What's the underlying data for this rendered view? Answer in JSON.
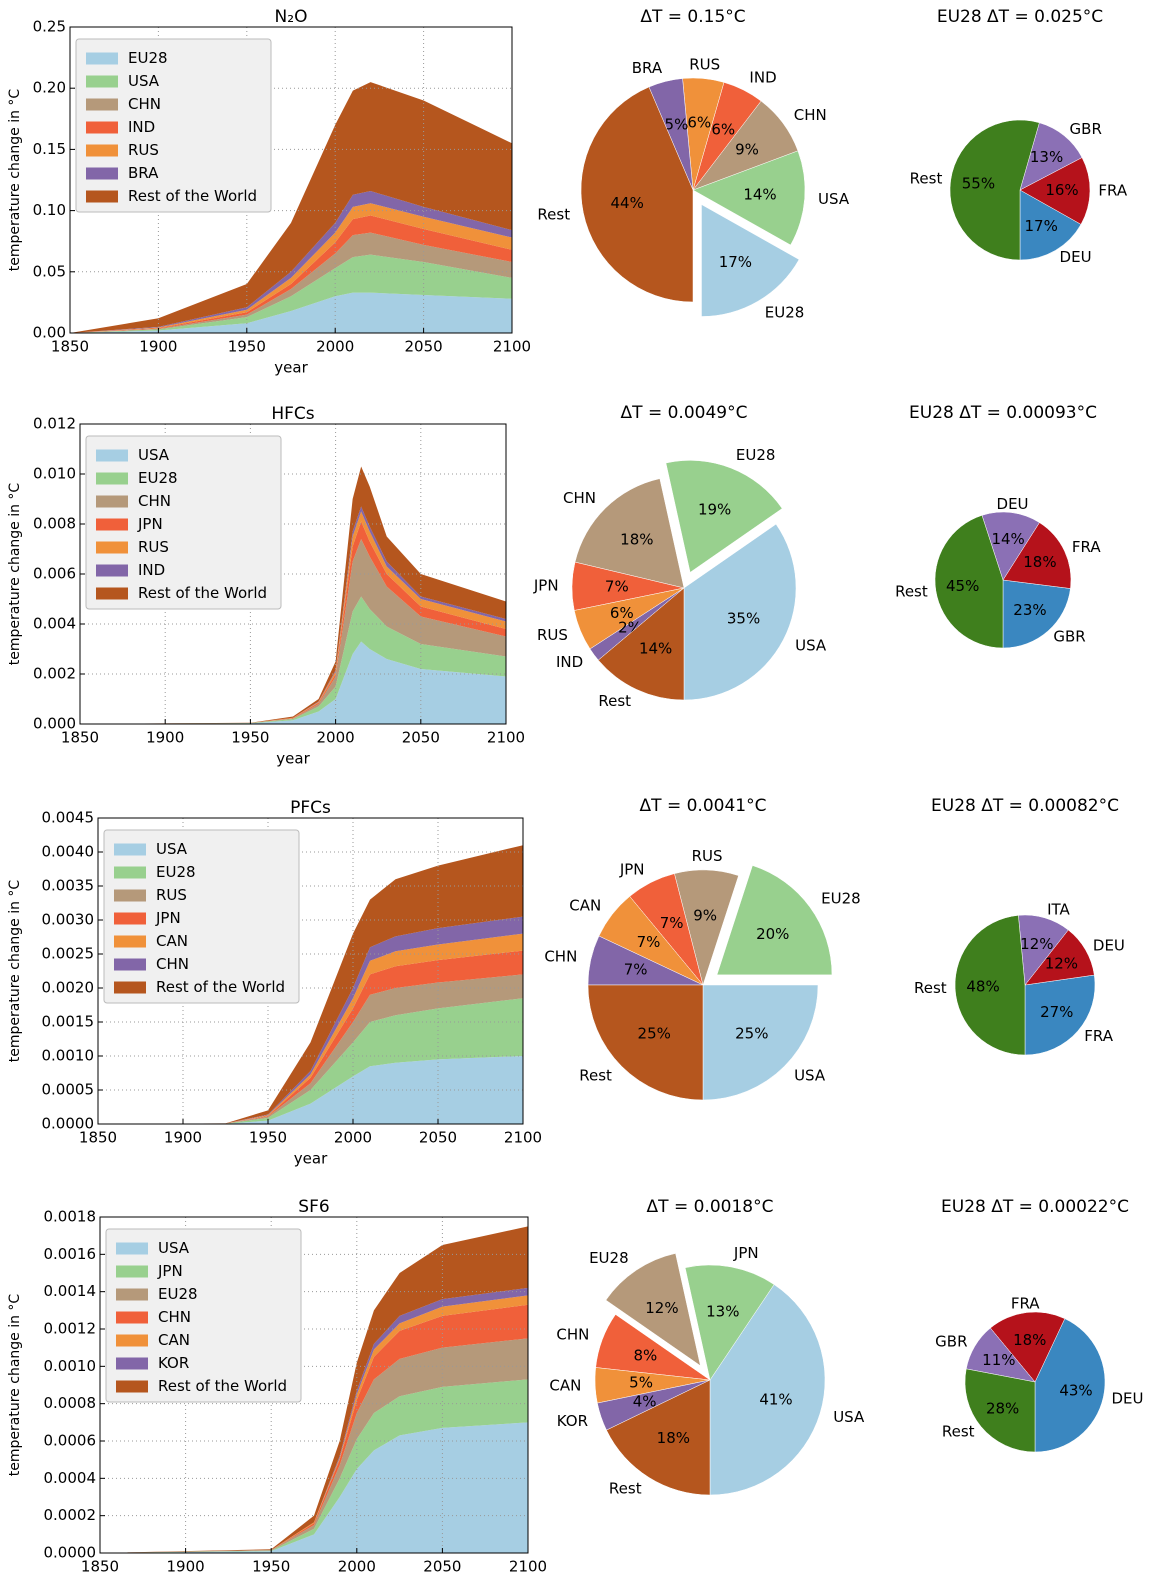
{
  "chart_data": [
    {
      "type": "area",
      "title": "N₂O",
      "xlabel": "year",
      "ylabel": "temperature change in °C",
      "x": [
        1850,
        1900,
        1950,
        1975,
        2000,
        2010,
        2020,
        2050,
        2100
      ],
      "series": [
        {
          "name": "EU28",
          "color": "#a6cee3",
          "values": [
            0,
            0.002,
            0.008,
            0.018,
            0.03,
            0.033,
            0.033,
            0.031,
            0.028
          ]
        },
        {
          "name": "USA",
          "color": "#98d08e",
          "values": [
            0,
            0.001,
            0.005,
            0.012,
            0.023,
            0.029,
            0.031,
            0.027,
            0.017
          ]
        },
        {
          "name": "CHN",
          "color": "#b5997a",
          "values": [
            0,
            0.0005,
            0.002,
            0.006,
            0.012,
            0.018,
            0.018,
            0.014,
            0.013
          ]
        },
        {
          "name": "IND",
          "color": "#f0603a",
          "values": [
            0,
            0.0005,
            0.002,
            0.004,
            0.009,
            0.013,
            0.014,
            0.013,
            0.01
          ]
        },
        {
          "name": "RUS",
          "color": "#f0913a",
          "values": [
            0,
            0.0005,
            0.002,
            0.005,
            0.008,
            0.01,
            0.01,
            0.01,
            0.01
          ]
        },
        {
          "name": "BRA",
          "color": "#8266a8",
          "values": [
            0,
            0.0005,
            0.002,
            0.005,
            0.008,
            0.01,
            0.01,
            0.008,
            0.006
          ]
        },
        {
          "name": "Rest of the World",
          "color": "#b5561e",
          "values": [
            0,
            0.007,
            0.019,
            0.04,
            0.08,
            0.085,
            0.089,
            0.087,
            0.071
          ]
        }
      ],
      "xlim": [
        1850,
        2100
      ],
      "xticks": [
        1850,
        1900,
        1950,
        2000,
        2050,
        2100
      ],
      "ylim": [
        0,
        0.25
      ],
      "yticks": [
        {
          "value": 0,
          "label": "0.00"
        },
        0.05,
        {
          "value": 0.1,
          "label": "0.10"
        },
        0.15,
        {
          "value": 0.2,
          "label": "0.20"
        },
        0.25
      ],
      "grid": true,
      "legend": "upper left"
    },
    {
      "type": "pie",
      "title": "ΔT = 0.15°C",
      "categories": [
        "EU28",
        "USA",
        "CHN",
        "IND",
        "RUS",
        "BRA",
        "Rest"
      ],
      "values": [
        17,
        14,
        9,
        6,
        6,
        5,
        44
      ],
      "value_labels": [
        "17%",
        "14%",
        "9%",
        "6%",
        "6%",
        "5%",
        "44%"
      ],
      "colors": [
        "#a6cee3",
        "#98d08e",
        "#b5997a",
        "#f0603a",
        "#f0913a",
        "#8266a8",
        "#b5561e"
      ],
      "explode": [
        0.15,
        0,
        0,
        0,
        0,
        0,
        0
      ]
    },
    {
      "type": "pie",
      "title": "EU28 ΔT = 0.025°C",
      "categories": [
        "DEU",
        "FRA",
        "GBR",
        "Rest"
      ],
      "values": [
        17,
        16,
        13,
        55
      ],
      "value_labels": [
        "17%",
        "16%",
        "13%",
        "55%"
      ],
      "colors": [
        "#3a87c0",
        "#b5121b",
        "#8b70b5",
        "#3f7f1d"
      ],
      "explode": [
        0,
        0,
        0,
        0
      ]
    },
    {
      "type": "area",
      "title": "HFCs",
      "xlabel": "year",
      "ylabel": "temperature change in °C",
      "x": [
        1850,
        1950,
        1975,
        1990,
        2000,
        2010,
        2015,
        2020,
        2030,
        2050,
        2100
      ],
      "series": [
        {
          "name": "USA",
          "color": "#a6cee3",
          "values": [
            0,
            3e-05,
            0.00015,
            0.0005,
            0.001,
            0.0028,
            0.0033,
            0.003,
            0.0026,
            0.0022,
            0.0019
          ]
        },
        {
          "name": "EU28",
          "color": "#98d08e",
          "values": [
            0,
            1e-05,
            5e-05,
            0.0002,
            0.0005,
            0.0017,
            0.0018,
            0.0016,
            0.0013,
            0.001,
            0.0008
          ]
        },
        {
          "name": "CHN",
          "color": "#b5997a",
          "values": [
            0,
            0,
            2e-05,
            0.0001,
            0.0004,
            0.002,
            0.0023,
            0.0021,
            0.0016,
            0.0011,
            0.0008
          ]
        },
        {
          "name": "JPN",
          "color": "#f0603a",
          "values": [
            0,
            0,
            2e-05,
            5e-05,
            0.0001,
            0.0006,
            0.0007,
            0.0006,
            0.0005,
            0.0004,
            0.0003
          ]
        },
        {
          "name": "RUS",
          "color": "#f0913a",
          "values": [
            0,
            0,
            1e-05,
            3e-05,
            0.0001,
            0.0004,
            0.0004,
            0.0004,
            0.0003,
            0.0003,
            0.0003
          ]
        },
        {
          "name": "IND",
          "color": "#8266a8",
          "values": [
            0,
            0,
            0,
            2e-05,
            5e-05,
            0.0002,
            0.0002,
            0.0002,
            0.0002,
            0.0001,
            0.0001
          ]
        },
        {
          "name": "Rest of the World",
          "color": "#b5561e",
          "values": [
            0,
            1e-05,
            5e-05,
            0.0001,
            0.00035,
            0.0013,
            0.0016,
            0.0016,
            0.001,
            0.0009,
            0.0007
          ]
        }
      ],
      "xlim": [
        1850,
        2100
      ],
      "xticks": [
        1850,
        1900,
        1950,
        2000,
        2050,
        2100
      ],
      "ylim": [
        0,
        0.012
      ],
      "yticks": [
        {
          "value": 0,
          "label": "0.000"
        },
        {
          "value": 0.002,
          "label": "0.002"
        },
        {
          "value": 0.004,
          "label": "0.004"
        },
        {
          "value": 0.006,
          "label": "0.006"
        },
        {
          "value": 0.008,
          "label": "0.008"
        },
        {
          "value": 0.01,
          "label": "0.010"
        },
        {
          "value": 0.012,
          "label": "0.012"
        }
      ],
      "grid": true,
      "legend": "upper left"
    },
    {
      "type": "pie",
      "title": "ΔT = 0.0049°C",
      "categories": [
        "USA",
        "EU28",
        "CHN",
        "JPN",
        "RUS",
        "IND",
        "Rest"
      ],
      "values": [
        35,
        19,
        18,
        7,
        6,
        2,
        14
      ],
      "value_labels": [
        "35%",
        "19%",
        "18%",
        "7%",
        "6%",
        "2%",
        "14%"
      ],
      "colors": [
        "#a6cee3",
        "#98d08e",
        "#b5997a",
        "#f0603a",
        "#f0913a",
        "#8266a8",
        "#b5561e"
      ],
      "explode": [
        0,
        0.15,
        0,
        0,
        0,
        0,
        0
      ]
    },
    {
      "type": "pie",
      "title": "EU28 ΔT = 0.00093°C",
      "categories": [
        "GBR",
        "FRA",
        "DEU",
        "Rest"
      ],
      "values": [
        23,
        18,
        14,
        45
      ],
      "value_labels": [
        "23%",
        "18%",
        "14%",
        "45%"
      ],
      "colors": [
        "#3a87c0",
        "#b5121b",
        "#8b70b5",
        "#3f7f1d"
      ],
      "explode": [
        0,
        0,
        0,
        0
      ]
    },
    {
      "type": "area",
      "title": "PFCs",
      "xlabel": "year",
      "ylabel": "temperature change in °C",
      "x": [
        1850,
        1925,
        1950,
        1975,
        2000,
        2010,
        2025,
        2050,
        2100
      ],
      "series": [
        {
          "name": "USA",
          "color": "#a6cee3",
          "values": [
            0,
            3e-06,
            5e-05,
            0.0003,
            0.0007,
            0.00085,
            0.0009,
            0.00095,
            0.001
          ]
        },
        {
          "name": "EU28",
          "color": "#98d08e",
          "values": [
            0,
            2e-06,
            4e-05,
            0.0002,
            0.0005,
            0.00065,
            0.0007,
            0.00075,
            0.00085
          ]
        },
        {
          "name": "RUS",
          "color": "#b5997a",
          "values": [
            0,
            1e-06,
            2e-05,
            0.0001,
            0.0003,
            0.0004,
            0.0004,
            0.00038,
            0.00035
          ]
        },
        {
          "name": "JPN",
          "color": "#f0603a",
          "values": [
            0,
            1e-06,
            1e-05,
            8e-05,
            0.0002,
            0.0003,
            0.00032,
            0.00033,
            0.00035
          ]
        },
        {
          "name": "CAN",
          "color": "#f0913a",
          "values": [
            0,
            1e-06,
            1e-05,
            5e-05,
            0.00015,
            0.0002,
            0.00022,
            0.00023,
            0.00025
          ]
        },
        {
          "name": "CHN",
          "color": "#8266a8",
          "values": [
            0,
            0,
            1e-05,
            5e-05,
            0.00015,
            0.0002,
            0.00022,
            0.00024,
            0.00025
          ]
        },
        {
          "name": "Rest of the World",
          "color": "#b5561e",
          "values": [
            0,
            2e-06,
            6e-05,
            0.00042,
            0.0008,
            0.0007,
            0.00084,
            0.00092,
            0.00105
          ]
        }
      ],
      "xlim": [
        1850,
        2100
      ],
      "xticks": [
        1850,
        1900,
        1950,
        2000,
        2050,
        2100
      ],
      "ylim": [
        0,
        0.0045
      ],
      "yticks": [
        {
          "value": 0,
          "label": "0.0000"
        },
        0.0005,
        {
          "value": 0.001,
          "label": "0.0010"
        },
        0.0015,
        {
          "value": 0.002,
          "label": "0.0020"
        },
        0.0025,
        {
          "value": 0.003,
          "label": "0.0030"
        },
        0.0035,
        {
          "value": 0.004,
          "label": "0.0040"
        },
        0.0045
      ],
      "grid": true,
      "legend": "upper left"
    },
    {
      "type": "pie",
      "title": "ΔT = 0.0041°C",
      "categories": [
        "USA",
        "EU28",
        "RUS",
        "JPN",
        "CAN",
        "CHN",
        "Rest"
      ],
      "values": [
        25,
        20,
        9,
        7,
        7,
        7,
        25
      ],
      "value_labels": [
        "25%",
        "20%",
        "9%",
        "7%",
        "7%",
        "7%",
        "25%"
      ],
      "colors": [
        "#a6cee3",
        "#98d08e",
        "#b5997a",
        "#f0603a",
        "#f0913a",
        "#8266a8",
        "#b5561e"
      ],
      "explode": [
        0,
        0.15,
        0,
        0,
        0,
        0,
        0
      ]
    },
    {
      "type": "pie",
      "title": "EU28 ΔT = 0.00082°C",
      "categories": [
        "FRA",
        "DEU",
        "ITA",
        "Rest"
      ],
      "values": [
        27,
        12,
        12,
        48
      ],
      "value_labels": [
        "27%",
        "12%",
        "12%",
        "48%"
      ],
      "colors": [
        "#3a87c0",
        "#b5121b",
        "#8b70b5",
        "#3f7f1d"
      ],
      "explode": [
        0,
        0,
        0,
        0
      ]
    },
    {
      "type": "area",
      "title": "SF6",
      "xlabel": "year",
      "ylabel": "temperature change in °C",
      "x": [
        1850,
        1950,
        1975,
        1990,
        2000,
        2010,
        2025,
        2050,
        2100
      ],
      "series": [
        {
          "name": "USA",
          "color": "#a6cee3",
          "values": [
            0,
            1e-05,
            0.0001,
            0.0003,
            0.00045,
            0.00055,
            0.00063,
            0.00067,
            0.0007
          ]
        },
        {
          "name": "JPN",
          "color": "#98d08e",
          "values": [
            0,
            3e-06,
            3e-05,
            0.0001,
            0.00016,
            0.0002,
            0.00021,
            0.00022,
            0.00023
          ]
        },
        {
          "name": "EU28",
          "color": "#b5997a",
          "values": [
            0,
            3e-06,
            2e-05,
            7e-05,
            0.00014,
            0.00018,
            0.0002,
            0.00021,
            0.00022
          ]
        },
        {
          "name": "CHN",
          "color": "#f0603a",
          "values": [
            0,
            0,
            1e-05,
            3e-05,
            7e-05,
            0.00012,
            0.00015,
            0.00017,
            0.00018
          ]
        },
        {
          "name": "CAN",
          "color": "#f0913a",
          "values": [
            0,
            0,
            5e-06,
            1e-05,
            3e-05,
            4e-05,
            4e-05,
            5e-05,
            5e-05
          ]
        },
        {
          "name": "KOR",
          "color": "#8266a8",
          "values": [
            0,
            0,
            0,
            1e-05,
            2e-05,
            3e-05,
            4e-05,
            4e-05,
            4e-05
          ]
        },
        {
          "name": "Rest of the World",
          "color": "#b5561e",
          "values": [
            0,
            4e-06,
            3.5e-05,
            8e-05,
            0.00015,
            0.00018,
            0.00023,
            0.00029,
            0.00033
          ]
        }
      ],
      "xlim": [
        1850,
        2100
      ],
      "xticks": [
        1850,
        1900,
        1950,
        2000,
        2050,
        2100
      ],
      "ylim": [
        0,
        0.0018
      ],
      "yticks": [
        {
          "value": 0,
          "label": "0.0000"
        },
        0.0002,
        0.0004,
        0.0006,
        0.0008,
        {
          "value": 0.001,
          "label": "0.0010"
        },
        0.0012,
        0.0014,
        0.0016,
        0.0018
      ],
      "grid": true,
      "legend": "upper left"
    },
    {
      "type": "pie",
      "title": "ΔT = 0.0018°C",
      "categories": [
        "USA",
        "JPN",
        "EU28",
        "CHN",
        "CAN",
        "KOR",
        "Rest"
      ],
      "values": [
        41,
        13,
        12,
        8,
        5,
        4,
        18
      ],
      "value_labels": [
        "41%",
        "13%",
        "12%",
        "8%",
        "5%",
        "4%",
        "18%"
      ],
      "colors": [
        "#a6cee3",
        "#98d08e",
        "#b5997a",
        "#f0603a",
        "#f0913a",
        "#8266a8",
        "#b5561e"
      ],
      "explode": [
        0,
        0,
        0.15,
        0,
        0,
        0,
        0
      ]
    },
    {
      "type": "pie",
      "title": "EU28 ΔT = 0.00022°C",
      "categories": [
        "DEU",
        "FRA",
        "GBR",
        "Rest"
      ],
      "values": [
        43,
        18,
        11,
        28
      ],
      "value_labels": [
        "43%",
        "18%",
        "11%",
        "28%"
      ],
      "colors": [
        "#3a87c0",
        "#b5121b",
        "#8b70b5",
        "#3f7f1d"
      ],
      "explode": [
        0,
        0,
        0,
        0
      ]
    }
  ]
}
